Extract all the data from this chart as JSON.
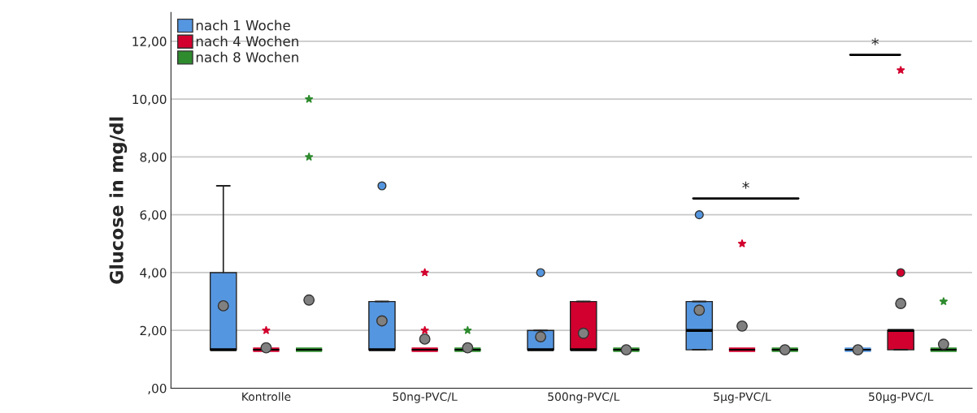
{
  "chart_data": {
    "type": "box",
    "ylabel": "Glucose in mg/dl",
    "categories": [
      "Kontrolle",
      "50ng-PVC/L",
      "500ng-PVC/L",
      "5µg-PVC/L",
      "50µg-PVC/L"
    ],
    "series": [
      {
        "name": "nach 1 Woche",
        "color": "#5596e0",
        "boxes": [
          {
            "low": 1.33,
            "q1": 1.33,
            "median": 1.33,
            "q3": 4,
            "high": 7,
            "mean": 2.85
          },
          {
            "low": 1.33,
            "q1": 1.33,
            "median": 1.33,
            "q3": 3,
            "high": 3,
            "mean": 2.33,
            "outliers": [
              7
            ]
          },
          {
            "low": 1.33,
            "q1": 1.33,
            "median": 1.33,
            "q3": 2,
            "high": 2,
            "mean": 1.78,
            "outliers": [
              4
            ]
          },
          {
            "low": 1.33,
            "q1": 1.33,
            "median": 2,
            "q3": 3,
            "high": 3,
            "mean": 2.7,
            "outliers": [
              6
            ]
          },
          {
            "low": 1.33,
            "q1": 1.33,
            "median": 1.33,
            "q3": 1.33,
            "high": 1.33,
            "mean": 1.33
          }
        ]
      },
      {
        "name": "nach 4 Wochen",
        "color": "#d2002e",
        "boxes": [
          {
            "low": 1.33,
            "q1": 1.33,
            "median": 1.33,
            "q3": 1.33,
            "high": 1.33,
            "mean": 1.4,
            "outliers": [
              2
            ]
          },
          {
            "low": 1.33,
            "q1": 1.33,
            "median": 1.33,
            "q3": 1.33,
            "high": 1.33,
            "mean": 1.7,
            "outliers": [
              2,
              4
            ]
          },
          {
            "low": 1.33,
            "q1": 1.33,
            "median": 1.33,
            "q3": 3,
            "high": 3,
            "mean": 1.9
          },
          {
            "low": 1.33,
            "q1": 1.33,
            "median": 1.33,
            "q3": 1.33,
            "high": 1.33,
            "mean": 2.15,
            "outliers": [
              5
            ]
          },
          {
            "low": 1.33,
            "q1": 1.33,
            "median": 2,
            "q3": 2,
            "high": 2,
            "mean": 2.93,
            "outliers": [
              4,
              11
            ]
          }
        ]
      },
      {
        "name": "nach 8 Wochen",
        "color": "#2e8b2e",
        "boxes": [
          {
            "low": 1.33,
            "q1": 1.33,
            "median": 1.33,
            "q3": 1.33,
            "high": 1.33,
            "mean": 3.05,
            "outliers": [
              8,
              10
            ]
          },
          {
            "low": 1.33,
            "q1": 1.33,
            "median": 1.33,
            "q3": 1.33,
            "high": 1.33,
            "mean": 1.4,
            "outliers": [
              2
            ]
          },
          {
            "low": 1.33,
            "q1": 1.33,
            "median": 1.33,
            "q3": 1.33,
            "high": 1.33,
            "mean": 1.33
          },
          {
            "low": 1.33,
            "q1": 1.33,
            "median": 1.33,
            "q3": 1.33,
            "high": 1.33,
            "mean": 1.33
          },
          {
            "low": 1.33,
            "q1": 1.33,
            "median": 1.33,
            "q3": 1.33,
            "high": 1.33,
            "mean": 1.52,
            "outliers": [
              3
            ]
          }
        ]
      }
    ],
    "annotations": [
      "*",
      "*"
    ],
    "ylim": [
      0,
      13
    ],
    "yticks": [
      {
        "value": 0,
        "label": ",00"
      },
      {
        "value": 2,
        "label": "2,00"
      },
      {
        "value": 4,
        "label": "4,00"
      },
      {
        "value": 6,
        "label": "6,00"
      },
      {
        "value": 8,
        "label": "8,00"
      },
      {
        "value": 10,
        "label": "10,00"
      },
      {
        "value": 12,
        "label": "12,00"
      }
    ],
    "grid": "y",
    "legend": "top left"
  }
}
